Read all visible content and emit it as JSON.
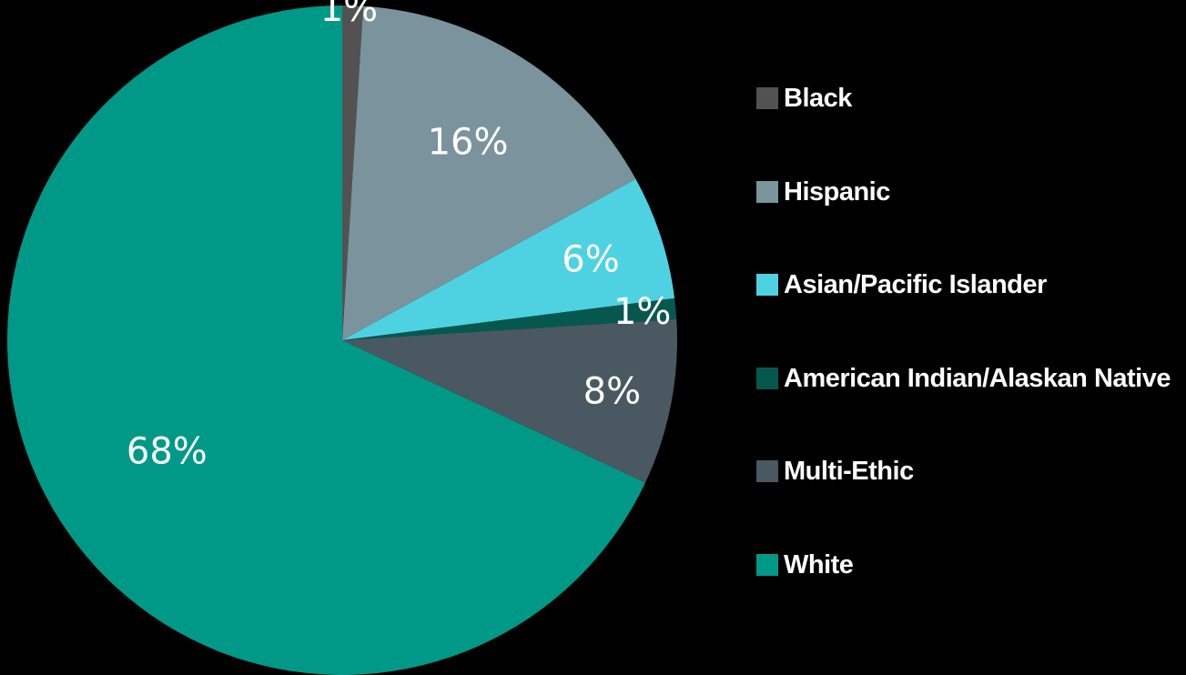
{
  "chart_data": {
    "type": "pie",
    "title": "",
    "slices": [
      {
        "name": "Black",
        "value": 1,
        "label": "1%",
        "color": "#525252"
      },
      {
        "name": "Hispanic",
        "value": 16,
        "label": "16%",
        "color": "#7a939d"
      },
      {
        "name": "Asian/Pacific Islander",
        "value": 6,
        "label": "6%",
        "color": "#4ed2e2"
      },
      {
        "name": "American Indian/Alaskan Native",
        "value": 1,
        "label": "1%",
        "color": "#06584f"
      },
      {
        "name": "Multi-Ethic",
        "value": 8,
        "label": "8%",
        "color": "#4a5861"
      },
      {
        "name": "White",
        "value": 68,
        "label": "68%",
        "color": "#009988"
      }
    ],
    "start_angle_deg": 0,
    "direction": "clockwise",
    "legend_position": "right"
  },
  "colors": {
    "background": "#000000",
    "text": "#ffffff"
  }
}
